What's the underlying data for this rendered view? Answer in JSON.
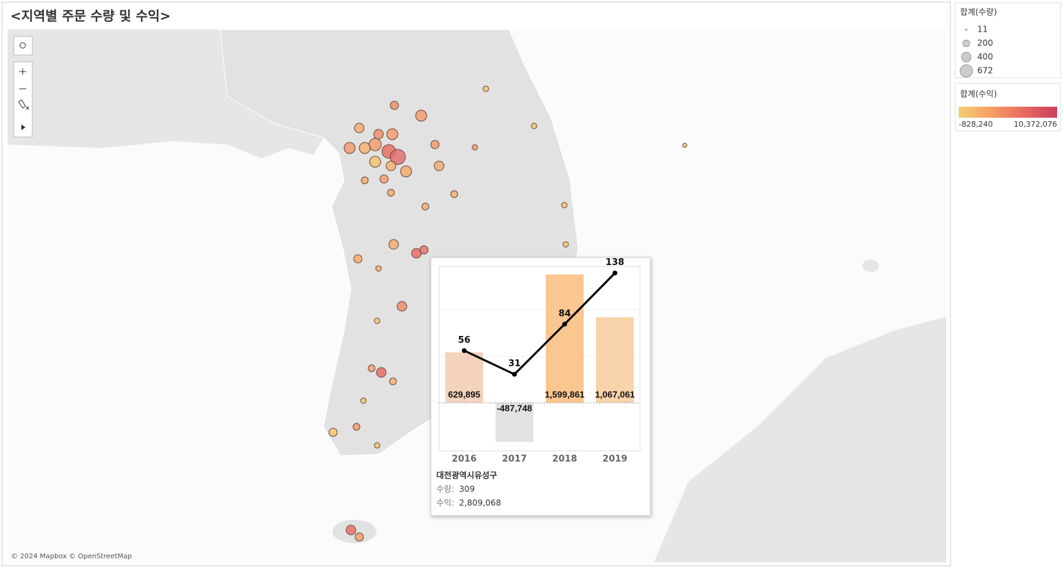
{
  "title": "<지역별 주문 수량 및 수익>",
  "attribution": "© 2024 Mapbox © OpenStreetMap",
  "size_legend": {
    "title": "합계(수량)",
    "items": [
      11,
      200,
      400,
      672
    ]
  },
  "color_legend": {
    "title": "합계(수익)",
    "min": {
      "value": -828240,
      "label": "-828,240"
    },
    "max": {
      "value": 10372076,
      "label": "10,372,076"
    },
    "colors": [
      "#f2cf72",
      "#f89c64",
      "#e8685f",
      "#c9415a"
    ]
  },
  "tooltip": {
    "region": "대전광역시유성구",
    "fields": [
      {
        "label": "수량:",
        "value": "309"
      },
      {
        "label": "수익:",
        "value": "2,809,068"
      }
    ]
  },
  "chart_data": {
    "type": "bar-line",
    "categories": [
      "2016",
      "2017",
      "2018",
      "2019"
    ],
    "series": [
      {
        "values": [
          629895,
          -487748,
          1599861,
          1067061
        ],
        "value_labels": [
          "629,895",
          "-487,748",
          "1,599,861",
          "1,067,061"
        ],
        "colors": [
          "#f3d3bd",
          "#e2e2e2",
          "#fcc691",
          "#f9d3a9"
        ]
      },
      {
        "values": [
          56,
          31,
          84,
          138
        ],
        "color": "#000000",
        "axis": "y2"
      }
    ],
    "ylim": [
      -600000,
      1700000
    ],
    "y2lim": [
      -50,
      145
    ]
  }
}
